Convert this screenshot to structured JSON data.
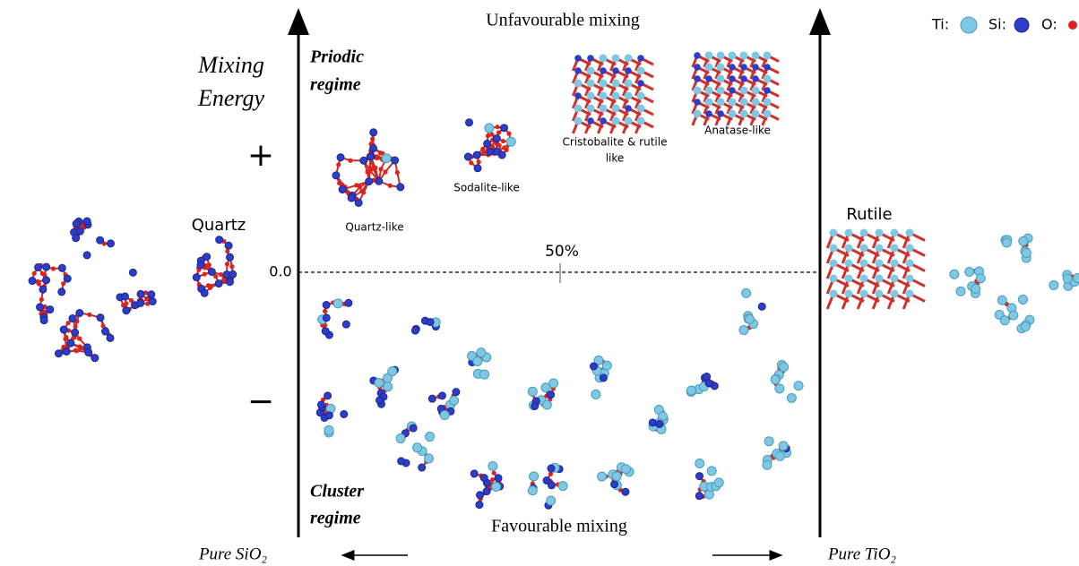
{
  "header": {
    "top_label": "Unfavourable mixing",
    "bottom_label": "Favourable mixing"
  },
  "legend": [
    {
      "label": "Ti:"
    },
    {
      "label": "Si:"
    },
    {
      "label": "O:"
    }
  ],
  "axis": {
    "title_lines": [
      "Mixing",
      "Energy"
    ],
    "plus": "+",
    "minus": "−",
    "zero": "0.0",
    "center_label": "50%"
  },
  "regimes": {
    "periodic": [
      "Priodic",
      "regime"
    ],
    "cluster": [
      "Cluster",
      "regime"
    ]
  },
  "structures": [
    {
      "lines": [
        "Quartz-like"
      ]
    },
    {
      "lines": [
        "Sodalite-like"
      ]
    },
    {
      "lines": [
        "Cristobalite & rutile",
        "like"
      ]
    },
    {
      "lines": [
        "Anatase-like"
      ]
    }
  ],
  "ends": {
    "left": {
      "label": "Quartz",
      "pure": "Pure SiO₂"
    },
    "right": {
      "label": "Rutile",
      "pure": "Pure TiO₂"
    }
  }
}
